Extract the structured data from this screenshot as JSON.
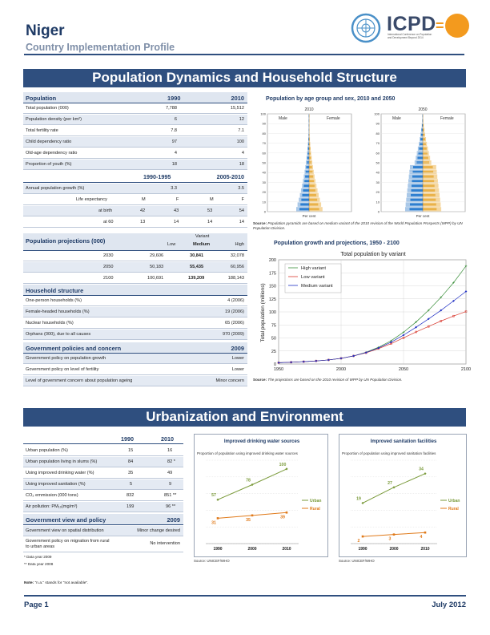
{
  "header": {
    "country": "Niger",
    "subtitle": "Country Implementation Profile",
    "logo_text": "ICPD",
    "logo_caption": "International Conference on Population and Development Beyond 2014"
  },
  "section1": {
    "title": "Population Dynamics and Household Structure",
    "pop_table": {
      "header": {
        "label": "Population",
        "y1": "1990",
        "y2": "2010"
      },
      "rows": [
        {
          "label": "Total population (000)",
          "v1": "7,788",
          "v2": "15,512"
        },
        {
          "label": "Population density (per km²)",
          "v1": "6",
          "v2": "12"
        },
        {
          "label": "Total fertility rate",
          "v1": "7.8",
          "v2": "7.1"
        },
        {
          "label": "Child dependency ratio",
          "v1": "97",
          "v2": "100"
        },
        {
          "label": "Old-age dependency ratio",
          "v1": "4",
          "v2": "4"
        },
        {
          "label": "Proportion of youth (%)",
          "v1": "18",
          "v2": "18"
        }
      ],
      "period_header": {
        "p1": "1990-1995",
        "p2": "2005-2010"
      },
      "growth": {
        "label": "Annual population growth (%)",
        "v1": "3.3",
        "v2": "3.5"
      },
      "life_exp": {
        "label": "Life expectancy",
        "sexes": [
          "M",
          "F",
          "M",
          "F"
        ],
        "birth_label": "at birth",
        "birth": [
          "42",
          "43",
          "53",
          "54"
        ],
        "sixty_label": "at 60",
        "sixty": [
          "13",
          "14",
          "14",
          "14"
        ]
      }
    },
    "projections": {
      "title": "Population projections (000)",
      "variant_label": "Variant",
      "variants": [
        "Low",
        "Medium",
        "High"
      ],
      "rows": [
        {
          "year": "2030",
          "low": "29,606",
          "medium": "30,841",
          "high": "32,078"
        },
        {
          "year": "2050",
          "low": "50,183",
          "medium": "55,435",
          "high": "60,956"
        },
        {
          "year": "2100",
          "low": "100,691",
          "medium": "139,209",
          "high": "188,143"
        }
      ]
    },
    "household": {
      "title": "Household structure",
      "rows": [
        {
          "label": "One-person households (%)",
          "value": "4 (2006)"
        },
        {
          "label": "Female-headed households (%)",
          "value": "19 (2006)"
        },
        {
          "label": "Nuclear households (%)",
          "value": "65 (2006)"
        },
        {
          "label": "Orphans (000), due to all causes",
          "value": "970 (2009)"
        }
      ]
    },
    "policies": {
      "title": "Government policies and concern",
      "year": "2009",
      "rows": [
        {
          "label": "Government policy on population growth",
          "value": "Lower"
        },
        {
          "label": "Government policy on level of fertility",
          "value": "Lower"
        },
        {
          "label": "Level of government concern about population ageing",
          "value": "Minor concern"
        }
      ]
    },
    "pyramid": {
      "title": "Population by age group and sex, 2010 and 2050",
      "left_year": "2010",
      "right_year": "2050",
      "male_label": "Male",
      "female_label": "Female",
      "y_ticks": [
        "100",
        "90",
        "80",
        "70",
        "60",
        "50",
        "40",
        "30",
        "20",
        "10",
        "0"
      ],
      "x_label": "Per cent",
      "source_bold": "Source:",
      "source_text": "Population pyramids are based on medium variant of the 2010 revision of the World Population Prospects (WPP) by UN Population Division.",
      "colors": {
        "male_bg": "#a9c8e8",
        "male_fg": "#2e7fd0",
        "female_bg": "#f5d7a0",
        "female_fg": "#e9b24a"
      }
    },
    "growth_chart": {
      "title": "Population growth and projections, 1950 - 2100",
      "source_bold": "Source:",
      "source_text": "The projections are based on the 2010 revision of WPP by UN Population Division."
    }
  },
  "chart_data": [
    {
      "type": "line",
      "title": "Total population by variant",
      "ylabel": "Total population (millions)",
      "x_ticks": [
        "1950",
        "2000",
        "2050",
        "2100"
      ],
      "y_ticks": [
        "0",
        "25",
        "50",
        "75",
        "100",
        "125",
        "150",
        "175",
        "200"
      ],
      "xlim": [
        1950,
        2100
      ],
      "ylim": [
        0,
        200
      ],
      "legend_position": "top-left",
      "grid": true,
      "series": [
        {
          "name": "High variant",
          "color": "#3a8f3a",
          "x": [
            1950,
            1960,
            1970,
            1980,
            1990,
            2000,
            2010,
            2020,
            2030,
            2040,
            2050,
            2060,
            2070,
            2080,
            2090,
            2100
          ],
          "y": [
            2.5,
            3.4,
            4.5,
            5.9,
            7.8,
            10.9,
            15.5,
            22.5,
            32.1,
            44.5,
            61.0,
            80.5,
            103,
            128,
            156,
            188
          ]
        },
        {
          "name": "Low variant",
          "color": "#d93a2f",
          "x": [
            1950,
            1960,
            1970,
            1980,
            1990,
            2000,
            2010,
            2020,
            2030,
            2040,
            2050,
            2060,
            2070,
            2080,
            2090,
            2100
          ],
          "y": [
            2.5,
            3.4,
            4.5,
            5.9,
            7.8,
            10.9,
            15.5,
            21.5,
            29.6,
            39.0,
            50.2,
            61.5,
            72.0,
            82.5,
            92.0,
            100.7
          ]
        },
        {
          "name": "Medium variant",
          "color": "#1f2fc4",
          "x": [
            1950,
            1960,
            1970,
            1980,
            1990,
            2000,
            2010,
            2020,
            2030,
            2040,
            2050,
            2060,
            2070,
            2080,
            2090,
            2100
          ],
          "y": [
            2.5,
            3.4,
            4.5,
            5.9,
            7.8,
            10.9,
            15.5,
            22.0,
            30.8,
            41.8,
            55.4,
            70.5,
            86.5,
            103,
            121,
            139.2
          ]
        }
      ]
    },
    {
      "type": "line",
      "title": "Improved drinking water sources",
      "subtitle": "Proportion of population using improved drinking water sources",
      "categories": [
        "1990",
        "2000",
        "2010"
      ],
      "source": "Source: UNICEF/WHO",
      "legend_position": "right",
      "ylim": [
        0,
        110
      ],
      "series": [
        {
          "name": "Urban",
          "color": "#7a9a3a",
          "values": [
            57,
            78,
            100
          ]
        },
        {
          "name": "Rural",
          "color": "#e07a1a",
          "values": [
            31,
            35,
            39
          ]
        }
      ]
    },
    {
      "type": "line",
      "title": "Improved sanitation facilities",
      "subtitle": "Proportion of population using improved sanitation facilities",
      "categories": [
        "1990",
        "2000",
        "2010"
      ],
      "source": "Source: UNICEF/WHO",
      "legend_position": "right",
      "ylim": [
        0,
        40
      ],
      "series": [
        {
          "name": "Urban",
          "color": "#7a9a3a",
          "values": [
            19,
            27,
            34
          ]
        },
        {
          "name": "Rural",
          "color": "#e07a1a",
          "values": [
            2,
            3,
            4
          ]
        }
      ]
    }
  ],
  "section2": {
    "title": "Urbanization and Environment",
    "table": {
      "years": [
        "1990",
        "2010"
      ],
      "rows": [
        {
          "label": "Urban population (%)",
          "v1": "15",
          "v2": "16"
        },
        {
          "label": "Urban population living in slums (%)",
          "v1": "84",
          "v2": "82 *"
        },
        {
          "label": "Using improved drinking water (%)",
          "v1": "35",
          "v2": "49"
        },
        {
          "label": "Using improved sanitation (%)",
          "v1": "5",
          "v2": "9"
        },
        {
          "label": "CO₂ emmission (000 tons)",
          "v1": "832",
          "v2": "851 **"
        },
        {
          "label": "Air pollution: PM₁₀(mg/m³)",
          "v1": "199",
          "v2": "96 **"
        }
      ]
    },
    "gov_view": {
      "title": "Government view and policy",
      "year": "2009",
      "rows": [
        {
          "label": "Government view on spatial distribution",
          "value": "Minor change desired"
        },
        {
          "label": "Government policy on migration from rural to urban areas",
          "value": "No intervention"
        }
      ]
    },
    "footnotes": [
      "* Data year 2009",
      "** Data year 2008"
    ]
  },
  "note": {
    "bold": "Note:",
    "text": "\"n.a.\" stands for \"not available\"."
  },
  "footer": {
    "page": "Page 1",
    "date": "July 2012"
  }
}
